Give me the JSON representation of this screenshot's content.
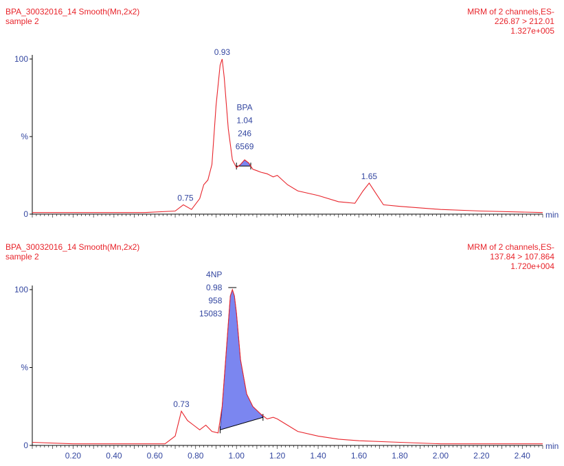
{
  "panels": [
    {
      "header_left": [
        "BPA_30032016_14 Smooth(Mn,2x2)",
        "sample 2"
      ],
      "header_right": [
        "MRM of 2 channels,ES-",
        "226.87 > 212.01",
        "1.327e+005"
      ]
    },
    {
      "header_left": [
        "BPA_30032016_14 Smooth(Mn,2x2)",
        "sample 2"
      ],
      "header_right": [
        "MRM of 2 channels,ES-",
        "137.84 > 107.864",
        "1.720e+004"
      ]
    }
  ],
  "colors": {
    "trace": "#e8232a",
    "axis_text": "#3346a0",
    "peak_fill": "#7b86f0",
    "axis": "#000000"
  },
  "chart_data": [
    {
      "type": "line",
      "title": "BPA_30032016_14 Smooth(Mn,2x2)",
      "xlabel": "min",
      "ylabel": "%",
      "xlim": [
        0.0,
        2.5
      ],
      "ylim": [
        0,
        100
      ],
      "y_ticks": [
        "100",
        "%",
        "0"
      ],
      "series": [
        {
          "x": [
            0.0,
            0.3,
            0.55,
            0.7,
            0.74,
            0.78,
            0.82,
            0.84,
            0.86,
            0.88,
            0.9,
            0.92,
            0.93,
            0.94,
            0.96,
            0.98,
            1.0,
            1.02,
            1.04,
            1.06,
            1.08,
            1.1,
            1.12,
            1.15,
            1.18,
            1.2,
            1.25,
            1.3,
            1.4,
            1.5,
            1.58,
            1.62,
            1.65,
            1.68,
            1.72,
            1.8,
            2.0,
            2.2,
            2.5
          ],
          "y": [
            1,
            1,
            1,
            2,
            6,
            3,
            10,
            19,
            22,
            32,
            70,
            96,
            100,
            88,
            55,
            35,
            30,
            32,
            35,
            33,
            29,
            28,
            27,
            26,
            24,
            25,
            19,
            15,
            12,
            8,
            7,
            15,
            20,
            14,
            6,
            5,
            3,
            2,
            1
          ]
        }
      ],
      "peak_labels": [
        {
          "x": 0.93,
          "y": 100,
          "text": "0.93"
        },
        {
          "x": 0.75,
          "y": 6,
          "text": "0.75"
        },
        {
          "x": 1.65,
          "y": 20,
          "text": "1.65"
        }
      ],
      "integrated_peak": {
        "name": "BPA",
        "rt": "1.04",
        "height": "246",
        "area": "6569",
        "x_start": 1.0,
        "x_end": 1.07,
        "baseline_y": 31,
        "apex_y": 37
      }
    },
    {
      "type": "line",
      "title": "BPA_30032016_14 Smooth(Mn,2x2)",
      "xlabel": "min",
      "ylabel": "%",
      "xlim": [
        0.0,
        2.5
      ],
      "ylim": [
        0,
        100
      ],
      "y_ticks": [
        "100",
        "%",
        "0"
      ],
      "x_ticks": [
        0.2,
        0.4,
        0.6,
        0.8,
        1.0,
        1.2,
        1.4,
        1.6,
        1.8,
        2.0,
        2.2,
        2.4
      ],
      "x_tick_labels": [
        "0.20",
        "0.40",
        "0.60",
        "0.80",
        "1.00",
        "1.20",
        "1.40",
        "1.60",
        "1.80",
        "2.00",
        "2.20",
        "2.40"
      ],
      "series": [
        {
          "x": [
            0.0,
            0.2,
            0.4,
            0.55,
            0.65,
            0.7,
            0.73,
            0.76,
            0.79,
            0.82,
            0.85,
            0.88,
            0.91,
            0.93,
            0.95,
            0.97,
            0.98,
            0.99,
            1.0,
            1.02,
            1.05,
            1.08,
            1.12,
            1.15,
            1.18,
            1.2,
            1.25,
            1.3,
            1.4,
            1.5,
            1.6,
            1.8,
            2.0,
            2.2,
            2.5
          ],
          "y": [
            2,
            1,
            1,
            1,
            1,
            6,
            22,
            16,
            13,
            10,
            13,
            9,
            8,
            25,
            60,
            96,
            100,
            96,
            85,
            55,
            33,
            25,
            20,
            17,
            18,
            17,
            13,
            9,
            6,
            4,
            3,
            2,
            1,
            1,
            1
          ]
        }
      ],
      "peak_labels": [
        {
          "x": 0.73,
          "y": 22,
          "text": "0.73"
        }
      ],
      "integrated_peak": {
        "name": "4NP",
        "rt": "0.98",
        "height": "958",
        "area": "15083",
        "x_start": 0.92,
        "x_end": 1.13,
        "baseline_y_start": 10,
        "baseline_y_end": 18,
        "apex_y": 100
      }
    }
  ]
}
